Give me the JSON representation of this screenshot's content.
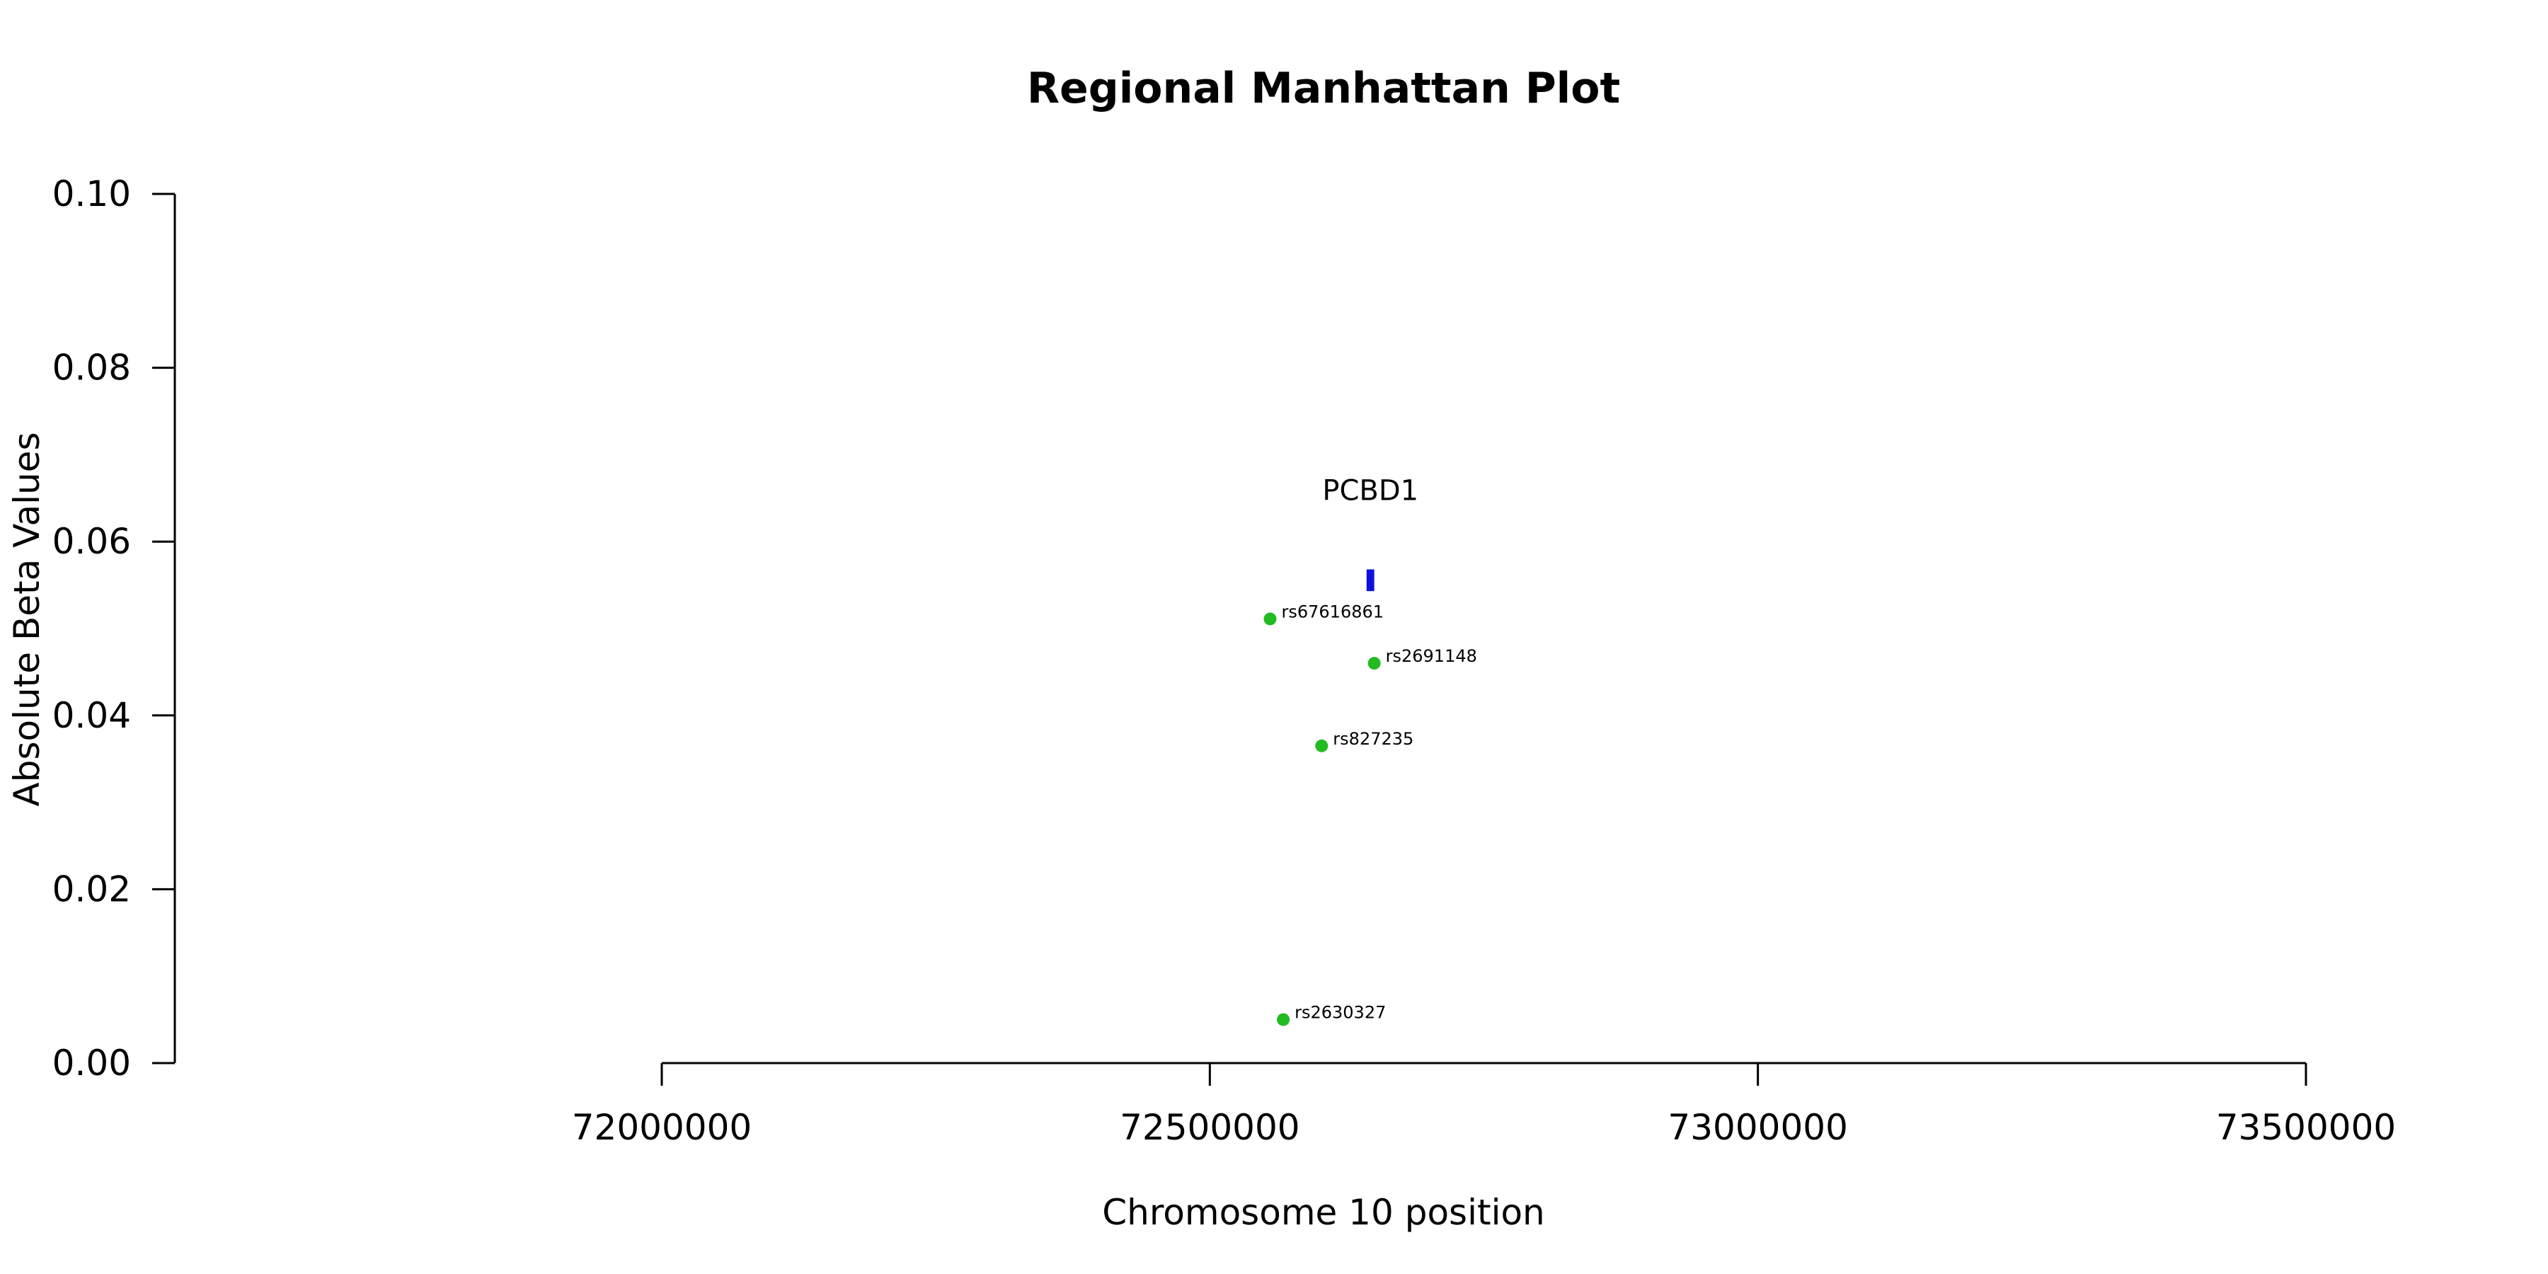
{
  "chart_data": {
    "type": "scatter",
    "title": "Regional Manhattan Plot",
    "xlabel": "Chromosome 10 position",
    "ylabel": "Absolute Beta Values",
    "xlim": [
      72000000,
      73500000
    ],
    "ylim": [
      0,
      0.1
    ],
    "xticks": [
      72000000,
      72500000,
      73000000,
      73500000
    ],
    "xtick_labels": [
      "72000000",
      "72500000",
      "73000000",
      "73500000"
    ],
    "yticks": [
      0,
      0.02,
      0.04,
      0.06,
      0.08,
      0.1
    ],
    "ytick_labels": [
      "0.00",
      "0.02",
      "0.04",
      "0.06",
      "0.08",
      "0.10"
    ],
    "grid": false,
    "point_color": "#22bb22",
    "gene_color": "#1010dd",
    "points": [
      {
        "label": "rs67616861",
        "x": 72555000,
        "y": 0.0511
      },
      {
        "label": "rs2691148",
        "x": 72650000,
        "y": 0.046
      },
      {
        "label": "rs827235",
        "x": 72602000,
        "y": 0.0365
      },
      {
        "label": "rs2630327",
        "x": 72567000,
        "y": 0.005
      }
    ],
    "genes": [
      {
        "name": "PCBD1",
        "start": 72643000,
        "end": 72650000,
        "y_low": 0.0543,
        "y_high": 0.0568
      }
    ]
  }
}
